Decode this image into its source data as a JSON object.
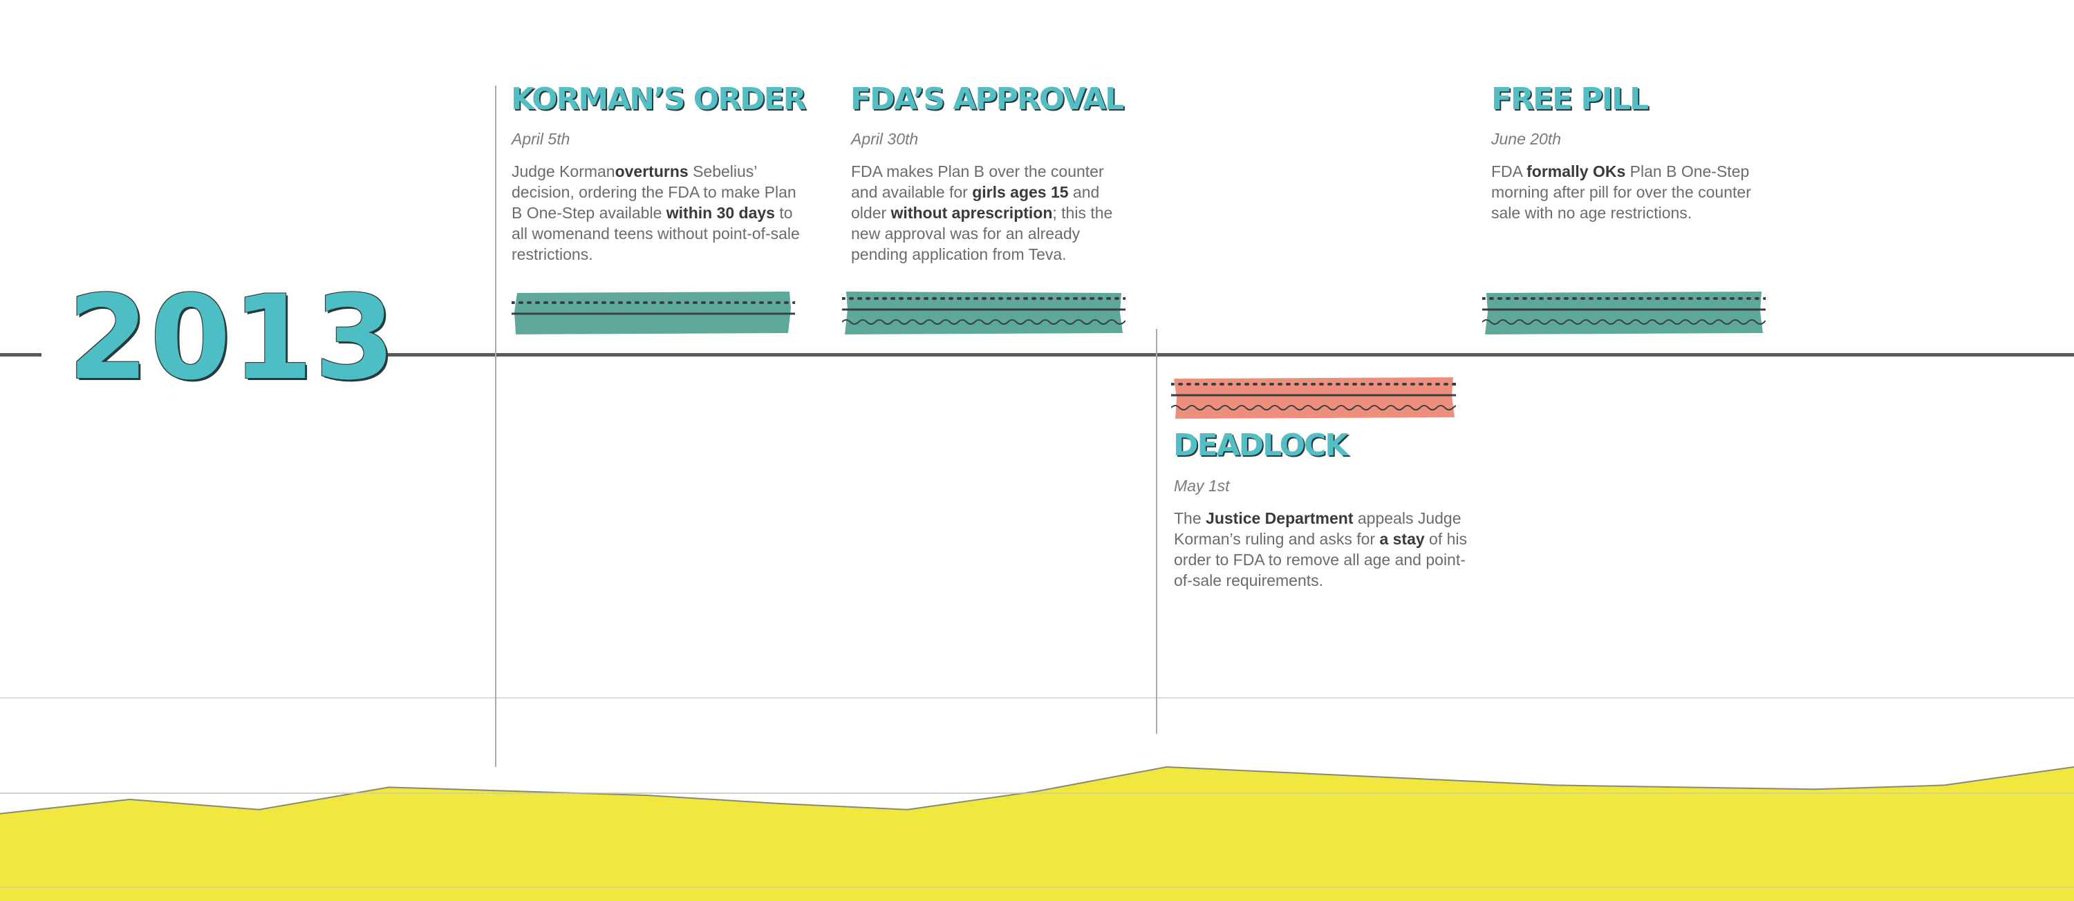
{
  "year": "2013",
  "colors": {
    "accent": "#4dbfc4",
    "tape_green": "#5ea89a",
    "tape_red": "#ee8f7d",
    "line": "#555a5c",
    "area": "#f0e73f"
  },
  "events": [
    {
      "id": "kormans-order",
      "title": "KORMAN’S ORDER",
      "date": "April 5th",
      "parts": [
        {
          "t": "Judge Korman"
        },
        {
          "t": "overturns",
          "b": true
        },
        {
          "t": " Sebelius’ decision, ordering the FDA to make Plan B One-Step available "
        },
        {
          "t": "within 30 days",
          "b": true
        },
        {
          "t": " to all womenand teens without point-of-sale restrictions."
        }
      ],
      "tape": "green-dots-line"
    },
    {
      "id": "fdas-approval",
      "title": "FDA’S APPROVAL",
      "date": "April 30th",
      "parts": [
        {
          "t": "FDA makes Plan B over the counter and available for "
        },
        {
          "t": "girls ages 15",
          "b": true
        },
        {
          "t": " and older "
        },
        {
          "t": "without aprescription",
          "b": true
        },
        {
          "t": "; this the new approval was for an already pending application from Teva."
        }
      ],
      "tape": "green-dots-line-wave"
    },
    {
      "id": "deadlock",
      "title": "DEADLOCK",
      "date": "May 1st",
      "parts": [
        {
          "t": "The "
        },
        {
          "t": "Justice Department",
          "b": true
        },
        {
          "t": " appeals Judge Korman’s ruling and asks for "
        },
        {
          "t": "a stay",
          "b": true
        },
        {
          "t": " of his order to FDA to remove all age and point-of-sale requirements."
        }
      ],
      "tape": "red-dots-line-wave"
    },
    {
      "id": "free-pill",
      "title": "FREE PILL",
      "date": "June 20th",
      "parts": [
        {
          "t": "FDA "
        },
        {
          "t": "formally OKs",
          "b": true
        },
        {
          "t": " Plan B One-Step morning after pill for over the counter sale with no age restrictions."
        }
      ],
      "tape": "green-dots-line-wave"
    }
  ],
  "area_chart": {
    "type": "area",
    "note_units": "relative level, 0 = baseline, 100 = top gridline",
    "y": [
      43,
      50,
      45,
      56,
      54,
      52,
      48,
      45,
      54,
      66,
      63,
      60,
      57,
      56,
      55,
      57,
      66
    ]
  }
}
